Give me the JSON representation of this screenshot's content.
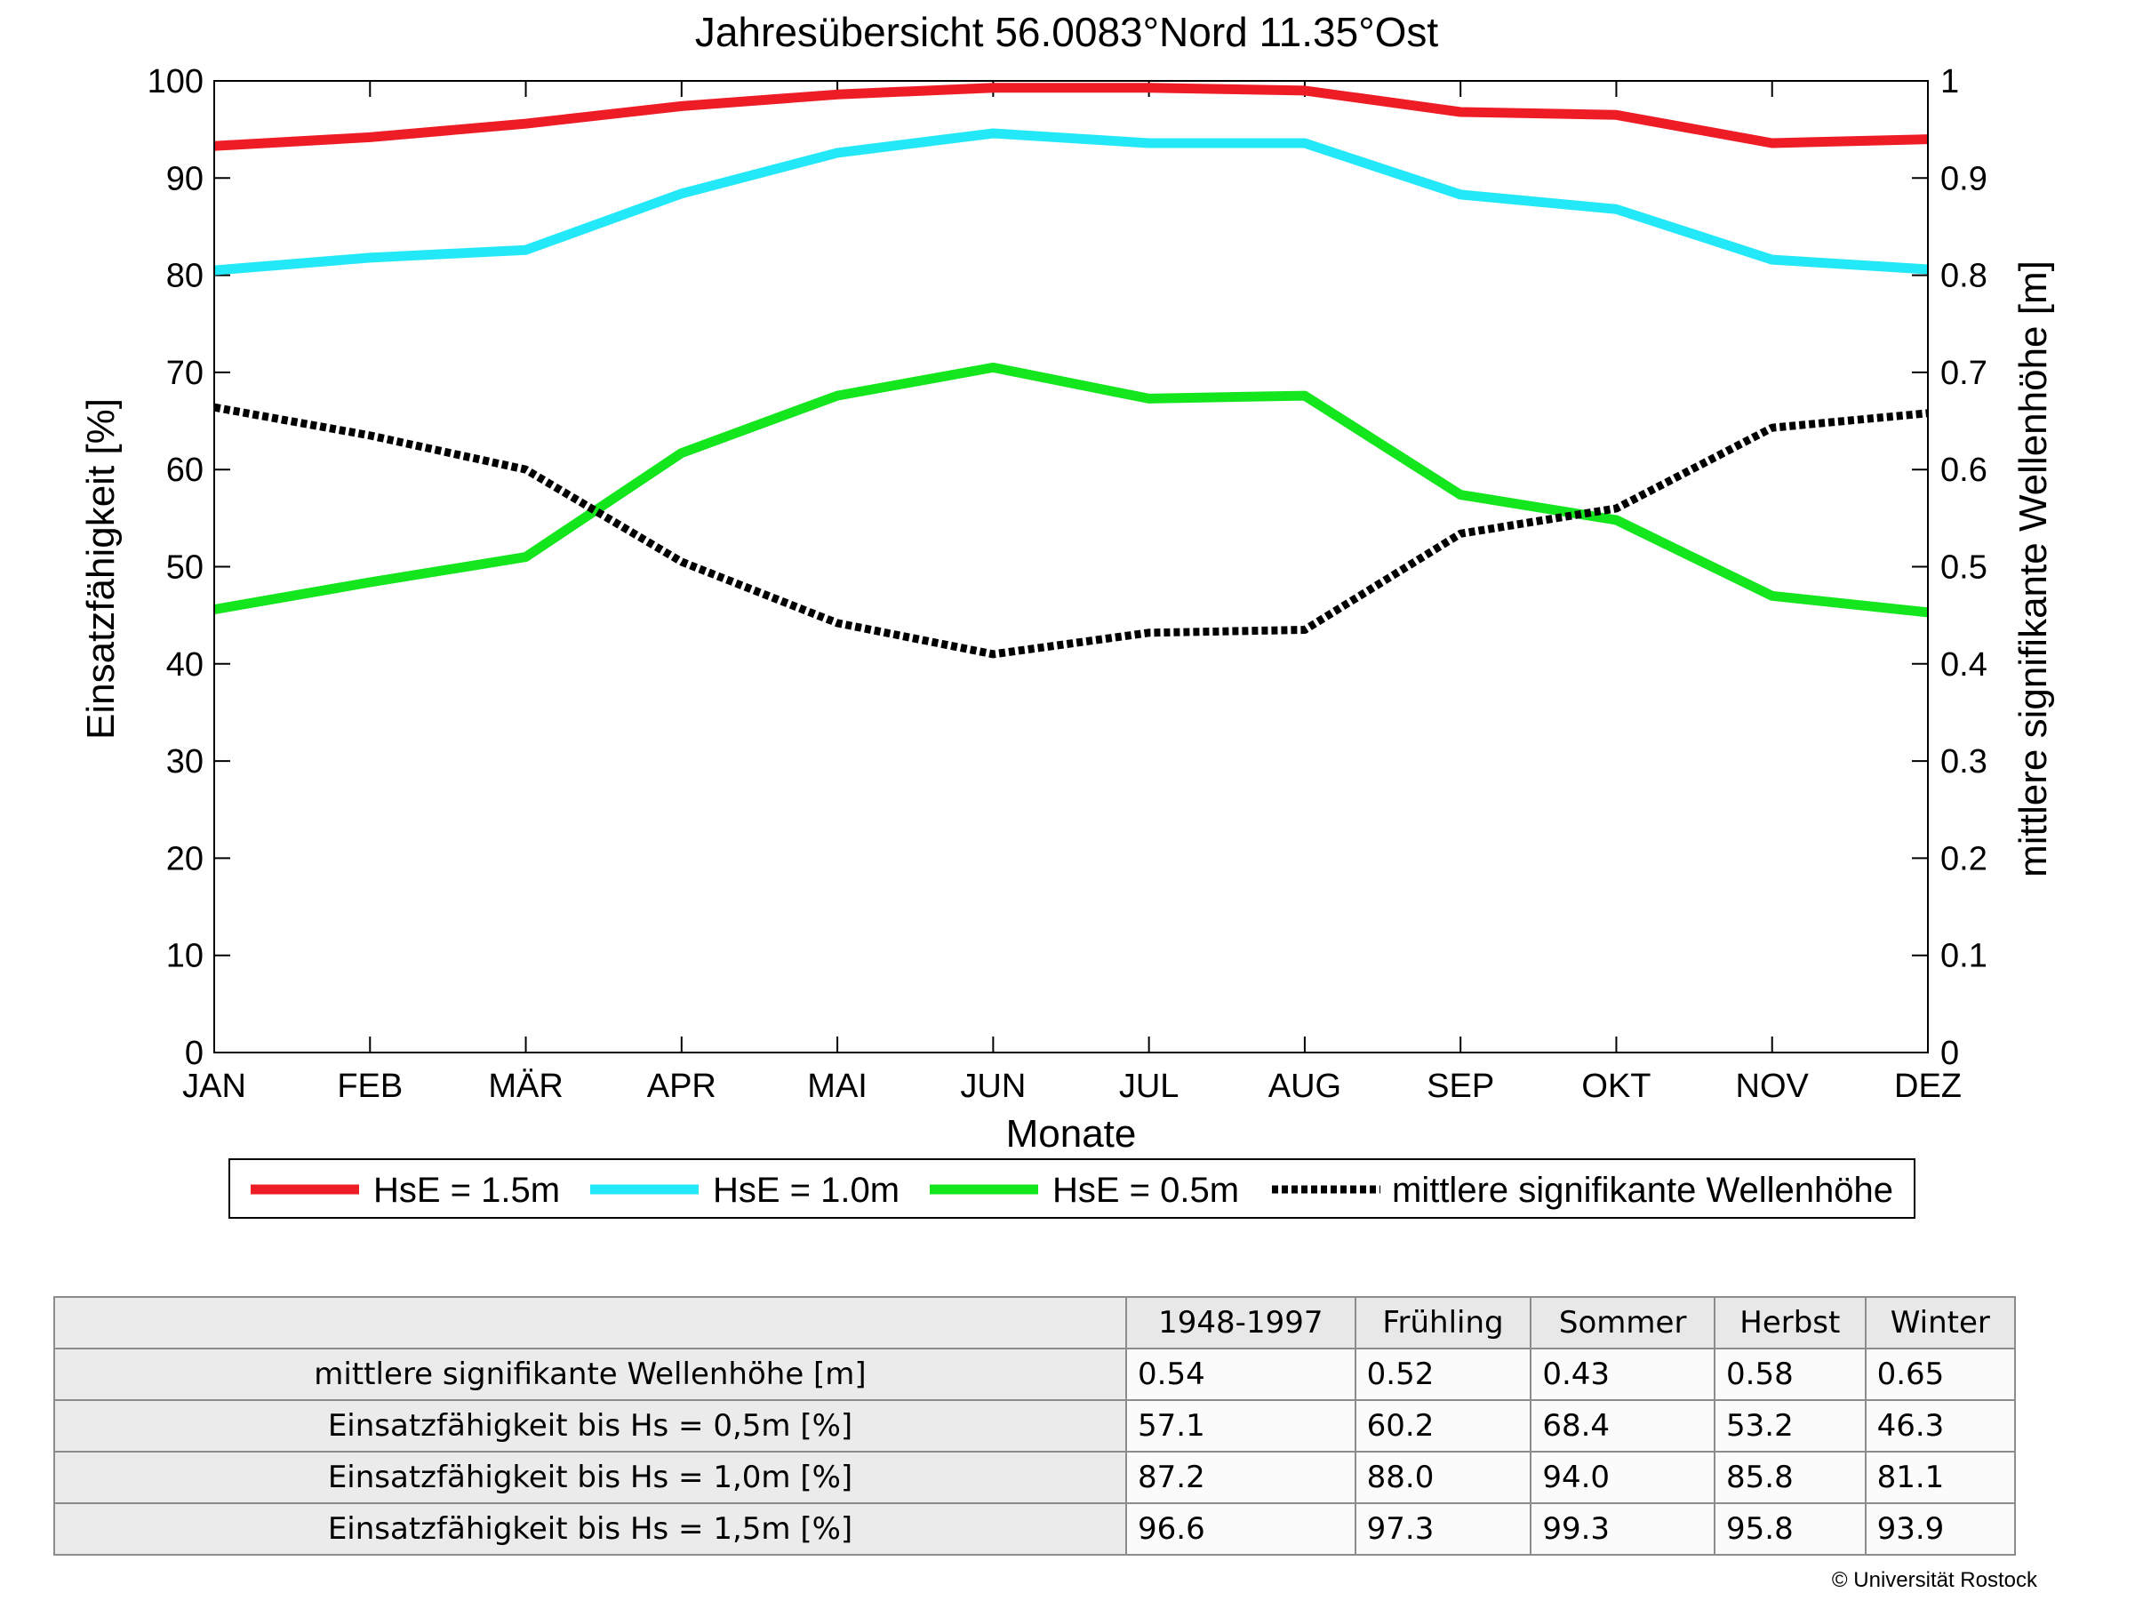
{
  "chart_data": {
    "type": "line",
    "title": "Jahresübersicht  56.0083°Nord  11.35°Ost",
    "xlabel": "Monate",
    "ylabel": "Einsatzfähigkeit [%]",
    "y2label": "mittlere signifikante Wellenhöhe [m]",
    "ylim": [
      0,
      100
    ],
    "y2lim": [
      0,
      1
    ],
    "yticks": [
      "0",
      "10",
      "20",
      "30",
      "40",
      "50",
      "60",
      "70",
      "80",
      "90",
      "100"
    ],
    "y2ticks": [
      "0",
      "0.1",
      "0.2",
      "0.3",
      "0.4",
      "0.5",
      "0.6",
      "0.7",
      "0.8",
      "0.9",
      "1"
    ],
    "categories": [
      "JAN",
      "FEB",
      "MÄR",
      "APR",
      "MAI",
      "JUN",
      "JUL",
      "AUG",
      "SEP",
      "OKT",
      "NOV",
      "DEZ"
    ],
    "grid": false,
    "legend_position": "bottom",
    "series": [
      {
        "name": "HsE = 1.5m",
        "axis": "left",
        "color": "#ee1c25",
        "style": "solid",
        "values": [
          93.3,
          94.2,
          95.6,
          97.4,
          98.6,
          99.3,
          99.3,
          99.0,
          96.8,
          96.5,
          93.6,
          94.0
        ]
      },
      {
        "name": "HsE = 1.0m",
        "axis": "left",
        "color": "#23e8f8",
        "style": "solid",
        "values": [
          80.5,
          81.8,
          82.6,
          88.4,
          92.6,
          94.6,
          93.6,
          93.6,
          88.3,
          86.8,
          81.6,
          80.6
        ]
      },
      {
        "name": "HsE = 0.5m",
        "axis": "left",
        "color": "#14e61e",
        "style": "solid",
        "values": [
          45.6,
          48.4,
          51.0,
          61.7,
          67.6,
          70.5,
          67.3,
          67.6,
          57.4,
          54.8,
          47.0,
          45.3
        ]
      },
      {
        "name": "mittlere signifikante Wellenhöhe",
        "axis": "right",
        "color": "#000000",
        "style": "dotted",
        "values": [
          0.664,
          0.635,
          0.6,
          0.505,
          0.442,
          0.41,
          0.432,
          0.435,
          0.534,
          0.56,
          0.643,
          0.658
        ]
      }
    ]
  },
  "table": {
    "headers": [
      "1948-1997",
      "Frühling",
      "Sommer",
      "Herbst",
      "Winter"
    ],
    "rows": [
      {
        "label": "mittlere signifikante Wellenhöhe [m]",
        "values": [
          "0.54",
          "0.52",
          "0.43",
          "0.58",
          "0.65"
        ]
      },
      {
        "label": "Einsatzfähigkeit bis Hs = 0,5m [%]",
        "values": [
          "57.1",
          "60.2",
          "68.4",
          "53.2",
          "46.3"
        ]
      },
      {
        "label": "Einsatzfähigkeit bis Hs = 1,0m [%]",
        "values": [
          "87.2",
          "88.0",
          "94.0",
          "85.8",
          "81.1"
        ]
      },
      {
        "label": "Einsatzfähigkeit bis Hs = 1,5m [%]",
        "values": [
          "96.6",
          "97.3",
          "99.3",
          "95.8",
          "93.9"
        ]
      }
    ]
  },
  "copyright": "© Universität Rostock"
}
